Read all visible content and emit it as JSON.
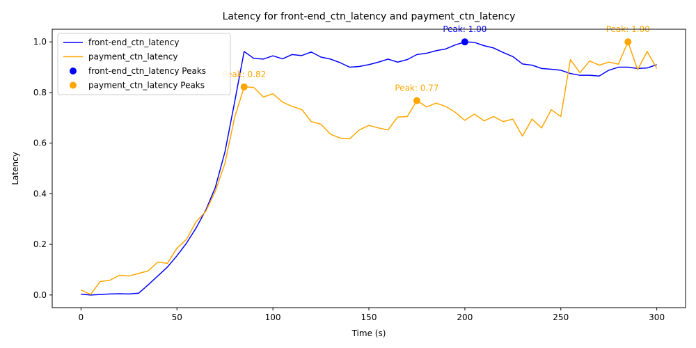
{
  "chart_data": {
    "type": "line",
    "title": "Latency for front-end_ctn_latency and payment_ctn_latency",
    "xlabel": "Time (s)",
    "ylabel": "Latency",
    "xlim": [
      -15,
      315
    ],
    "ylim": [
      -0.05,
      1.05
    ],
    "x_ticks": [
      0,
      50,
      100,
      150,
      200,
      250,
      300
    ],
    "x_tick_labels": [
      "0",
      "50",
      "100",
      "150",
      "200",
      "250",
      "300"
    ],
    "y_ticks": [
      0,
      0.2,
      0.4,
      0.6,
      0.8,
      1.0
    ],
    "y_tick_labels": [
      "0.0",
      "0.2",
      "0.4",
      "0.6",
      "0.8",
      "1.0"
    ],
    "grid": false,
    "legend_position": "top-left",
    "x": [
      0,
      5,
      10,
      15,
      20,
      25,
      30,
      35,
      40,
      45,
      50,
      55,
      60,
      65,
      70,
      75,
      80,
      85,
      90,
      95,
      100,
      105,
      110,
      115,
      120,
      125,
      130,
      135,
      140,
      145,
      150,
      155,
      160,
      165,
      170,
      175,
      180,
      185,
      190,
      195,
      200,
      205,
      210,
      215,
      220,
      225,
      230,
      235,
      240,
      245,
      250,
      255,
      260,
      265,
      270,
      275,
      280,
      285,
      290,
      295,
      300
    ],
    "series": [
      {
        "name": "front-end_ctn_latency",
        "color": "#0000ff",
        "values": [
          0.003,
          0.0,
          0.002,
          0.004,
          0.005,
          0.004,
          0.007,
          0.04,
          0.075,
          0.11,
          0.155,
          0.205,
          0.265,
          0.335,
          0.425,
          0.565,
          0.76,
          0.962,
          0.935,
          0.932,
          0.945,
          0.933,
          0.95,
          0.946,
          0.96,
          0.94,
          0.932,
          0.918,
          0.9,
          0.903,
          0.91,
          0.92,
          0.932,
          0.92,
          0.93,
          0.95,
          0.955,
          0.965,
          0.972,
          0.988,
          1.0,
          0.998,
          0.985,
          0.976,
          0.958,
          0.942,
          0.913,
          0.908,
          0.895,
          0.892,
          0.888,
          0.875,
          0.868,
          0.868,
          0.865,
          0.888,
          0.9,
          0.9,
          0.895,
          0.897,
          0.91
        ]
      },
      {
        "name": "payment_ctn_latency",
        "color": "#ffa500",
        "values": [
          0.02,
          0.002,
          0.053,
          0.058,
          0.078,
          0.075,
          0.085,
          0.095,
          0.13,
          0.125,
          0.185,
          0.22,
          0.29,
          0.33,
          0.41,
          0.52,
          0.7,
          0.822,
          0.82,
          0.782,
          0.795,
          0.762,
          0.745,
          0.733,
          0.685,
          0.675,
          0.635,
          0.62,
          0.617,
          0.652,
          0.67,
          0.66,
          0.652,
          0.703,
          0.705,
          0.768,
          0.743,
          0.758,
          0.745,
          0.722,
          0.69,
          0.715,
          0.688,
          0.705,
          0.685,
          0.695,
          0.628,
          0.695,
          0.66,
          0.732,
          0.705,
          0.93,
          0.878,
          0.925,
          0.908,
          0.92,
          0.912,
          1.0,
          0.89,
          0.962,
          0.895
        ]
      }
    ],
    "peaks": [
      {
        "series": "front-end_ctn_latency",
        "legend": "front-end_ctn_latency Peaks",
        "color": "#0000ff",
        "points": [
          {
            "x": 200,
            "y": 1.0,
            "label": "Peak: 1.00"
          }
        ]
      },
      {
        "series": "payment_ctn_latency",
        "legend": "payment_ctn_latency Peaks",
        "color": "#ffa500",
        "points": [
          {
            "x": 85,
            "y": 0.822,
            "label": "Peak: 0.82"
          },
          {
            "x": 175,
            "y": 0.768,
            "label": "Peak: 0.77"
          },
          {
            "x": 285,
            "y": 1.0,
            "label": "Peak: 1.00"
          }
        ]
      }
    ]
  }
}
